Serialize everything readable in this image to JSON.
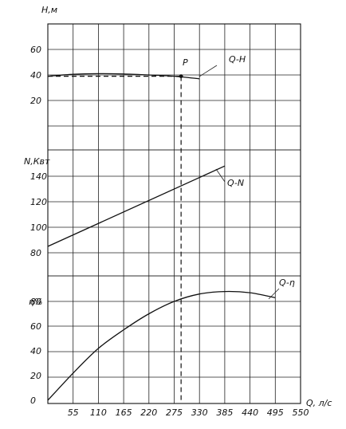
{
  "chart_data": [
    {
      "type": "line",
      "ylabel": "H,м",
      "xlabel": "Q, л/с",
      "xlim": [
        0,
        550
      ],
      "ylim": [
        0,
        80
      ],
      "yticks": [
        "60",
        "40",
        "20"
      ],
      "series": [
        {
          "name": "Q-H",
          "x": [
            0,
            55,
            110,
            165,
            220,
            275,
            330
          ],
          "y": [
            39,
            40.5,
            41,
            40.8,
            40,
            39,
            37
          ]
        }
      ],
      "annotations": [
        {
          "text": "P",
          "x": 290,
          "y": 39
        },
        {
          "text": "Q-H"
        }
      ]
    },
    {
      "type": "line",
      "ylabel": "N,Квт",
      "xlim": [
        0,
        550
      ],
      "ylim": [
        70,
        150
      ],
      "yticks": [
        "140",
        "120",
        "100",
        "80"
      ],
      "series": [
        {
          "name": "Q-N",
          "x": [
            0,
            385
          ],
          "y": [
            85,
            148
          ]
        }
      ],
      "annotations": [
        {
          "text": "Q-N"
        }
      ]
    },
    {
      "type": "line",
      "ylabel": "η%",
      "xlabel": "Q, л/с",
      "xlim": [
        0,
        550
      ],
      "ylim": [
        0,
        100
      ],
      "yticks": [
        "80",
        "60",
        "40",
        "20",
        "0"
      ],
      "xticks": [
        "55",
        "110",
        "165",
        "220",
        "275",
        "330",
        "385",
        "440",
        "495",
        "550"
      ],
      "series": [
        {
          "name": "Q-η",
          "x": [
            0,
            55,
            110,
            165,
            220,
            275,
            330,
            385,
            440,
            495
          ],
          "y": [
            0,
            22,
            42,
            57,
            70,
            80,
            86,
            88,
            87,
            83
          ]
        }
      ],
      "annotations": [
        {
          "text": "Q-η"
        }
      ]
    }
  ],
  "labels": {
    "h_axis": "H,м",
    "n_axis": "N,Квт",
    "eta_axis": "η%",
    "q_axis": "Q, л/с",
    "qh": "Q-H",
    "qn": "Q-N",
    "qeta": "Q-η",
    "point": "P"
  }
}
